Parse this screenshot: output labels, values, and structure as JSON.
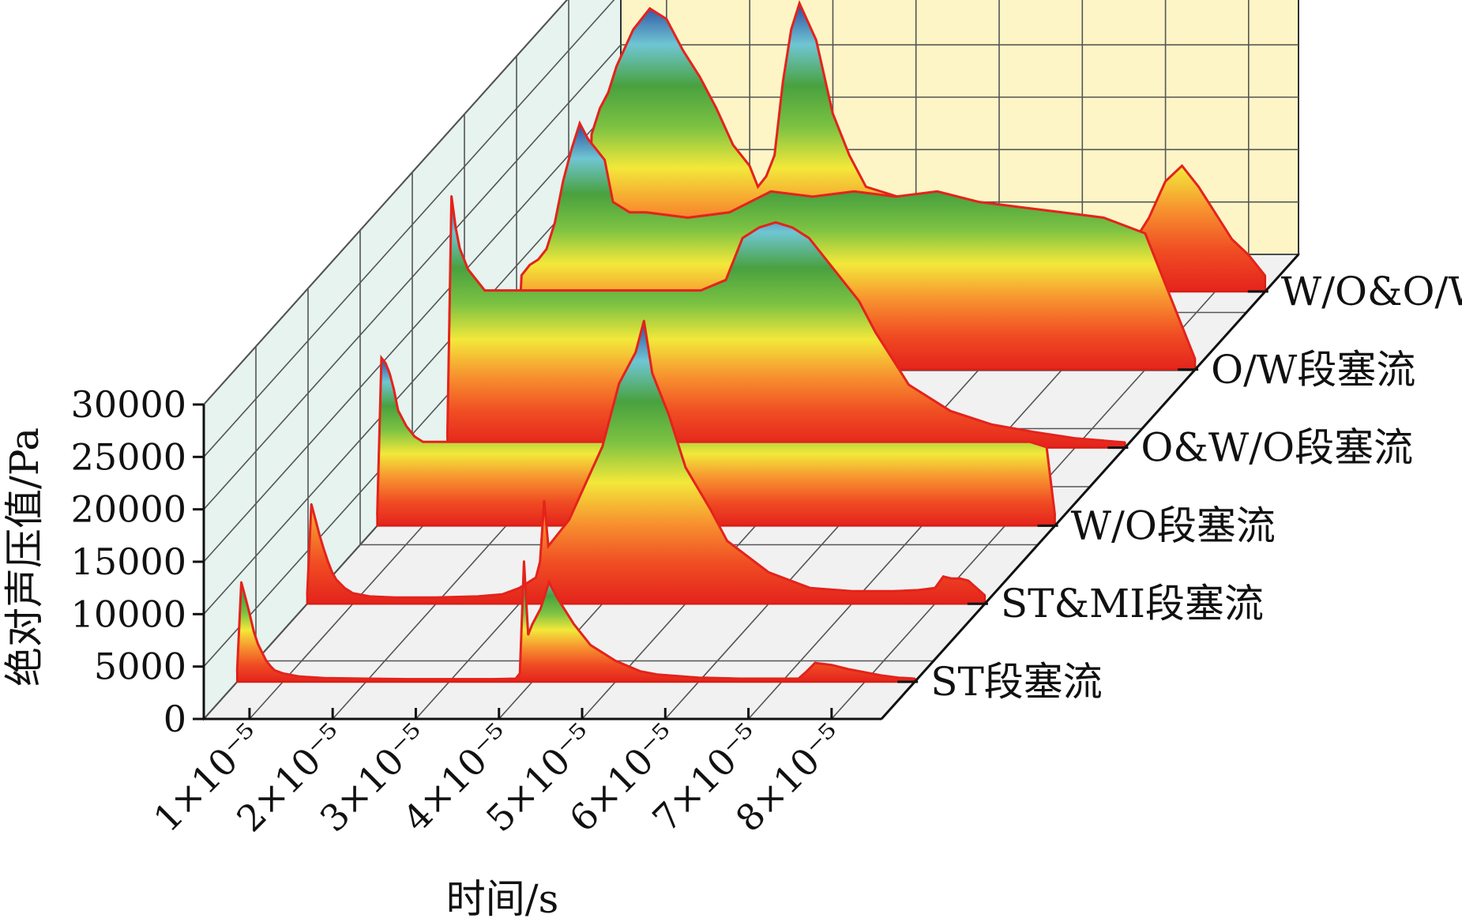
{
  "chart_data": {
    "type": "area",
    "title": "",
    "xlabel": "时间/s",
    "ylabel": "绝对声压值/Pa",
    "x_ticks": [
      "1×10⁻⁵",
      "2×10⁻⁵",
      "3×10⁻⁵",
      "4×10⁻⁵",
      "5×10⁻⁵",
      "6×10⁻⁵",
      "7×10⁻⁵",
      "8×10⁻⁵"
    ],
    "x_tick_values": [
      1e-05,
      2e-05,
      3e-05,
      4e-05,
      5e-05,
      6e-05,
      7e-05,
      8e-05
    ],
    "xlim": [
      4.5e-06,
      8.6e-05
    ],
    "y_ticks": [
      "0",
      "5000",
      "10000",
      "15000",
      "20000",
      "25000",
      "30000"
    ],
    "ylim": [
      0,
      30000
    ],
    "grid": true,
    "colormap": [
      "#e4231c",
      "#f04d23",
      "#f7932f",
      "#f3e83a",
      "#7cc242",
      "#49a13f",
      "#6fc6d3",
      "#2c4aa0"
    ],
    "wall_colors": {
      "left": "#e6f3ee",
      "back": "#fdf5c6",
      "floor": "#f1f1f1"
    },
    "series": [
      {
        "name": "ST段塞流",
        "x": [
          4.5e-06,
          5e-06,
          5.5e-06,
          6e-06,
          6.5e-06,
          7e-06,
          7.5e-06,
          8e-06,
          8.5e-06,
          9e-06,
          1e-05,
          1.2e-05,
          1.5e-05,
          2e-05,
          2.5e-05,
          3e-05,
          3.5e-05,
          3.8e-05,
          3.85e-05,
          3.9e-05,
          3.95e-05,
          4e-05,
          4.1e-05,
          4.2e-05,
          4.3e-05,
          4.5e-05,
          4.7e-05,
          5e-05,
          5.3e-05,
          5.5e-05,
          6e-05,
          6.5e-05,
          7e-05,
          7.2e-05,
          7.3e-05,
          7.4e-05,
          7.6e-05,
          7.8e-05,
          8e-05,
          8.2e-05,
          8.4e-05,
          8.6e-05
        ],
        "y": [
          1000,
          9500,
          8000,
          6500,
          4800,
          3600,
          2800,
          2000,
          1500,
          1100,
          800,
          500,
          350,
          300,
          250,
          250,
          250,
          300,
          800,
          11500,
          4500,
          5500,
          7000,
          9500,
          8000,
          5500,
          3500,
          2000,
          1000,
          700,
          400,
          300,
          300,
          300,
          1000,
          1800,
          1600,
          1200,
          900,
          600,
          400,
          300
        ]
      },
      {
        "name": "ST&MI段塞流",
        "x": [
          4.5e-06,
          5e-06,
          5.5e-06,
          6e-06,
          6.5e-06,
          7e-06,
          7.5e-06,
          8e-06,
          9e-06,
          1e-05,
          1.2e-05,
          1.5e-05,
          2e-05,
          2.5e-05,
          2.8e-05,
          3e-05,
          3.2e-05,
          3.25e-05,
          3.3e-05,
          3.35e-05,
          3.4e-05,
          3.6e-05,
          3.8e-05,
          4e-05,
          4.2e-05,
          4.4e-05,
          4.5e-05,
          4.6e-05,
          4.8e-05,
          5e-05,
          5.3e-05,
          5.5e-05,
          6e-05,
          6.5e-05,
          7e-05,
          7.5e-05,
          7.8e-05,
          8e-05,
          8.1e-05,
          8.2e-05,
          8.3e-05,
          8.4e-05,
          8.6e-05
        ],
        "y": [
          800,
          9500,
          8000,
          6500,
          5200,
          4000,
          3000,
          2300,
          1500,
          1000,
          700,
          600,
          600,
          700,
          900,
          1500,
          2500,
          4000,
          9800,
          5500,
          6000,
          8000,
          11500,
          15000,
          21000,
          24000,
          27000,
          22000,
          18000,
          13000,
          9000,
          6000,
          3000,
          1500,
          1200,
          1200,
          1300,
          1500,
          2600,
          2400,
          2400,
          2200,
          800
        ]
      },
      {
        "name": "W/O段塞流",
        "x": [
          4.5e-06,
          5e-06,
          5.5e-06,
          6e-06,
          6.5e-06,
          7e-06,
          8e-06,
          9e-06,
          1e-05,
          1.5e-05,
          2e-05,
          2.5e-05,
          3e-05,
          3.5e-05,
          4e-05,
          4.5e-05,
          5e-05,
          5.5e-05,
          6e-05,
          6.5e-05,
          7e-05,
          7.5e-05,
          8e-05,
          8.3e-05,
          8.5e-05,
          8.6e-05
        ],
        "y": [
          1000,
          16000,
          15500,
          14500,
          13000,
          11000,
          9500,
          8500,
          8000,
          8000,
          8000,
          8000,
          8000,
          8000,
          8000,
          8000,
          8000,
          8000,
          8000,
          8000,
          8000,
          8000,
          8000,
          8000,
          7500,
          1000
        ]
      },
      {
        "name": "O&W/O段塞流",
        "x": [
          4.5e-06,
          5e-06,
          5.5e-06,
          6e-06,
          7e-06,
          8e-06,
          9e-06,
          1e-05,
          1.5e-05,
          2e-05,
          2.5e-05,
          3e-05,
          3.5e-05,
          3.8e-05,
          4e-05,
          4.2e-05,
          4.4e-05,
          4.6e-05,
          4.8e-05,
          5e-05,
          5.2e-05,
          5.4e-05,
          5.6e-05,
          5.8e-05,
          6e-05,
          6.5e-05,
          7e-05,
          7.5e-05,
          8e-05,
          8.6e-05
        ],
        "y": [
          1000,
          24000,
          21000,
          19000,
          17000,
          16000,
          15000,
          15000,
          15000,
          15000,
          15000,
          15000,
          15000,
          16000,
          20000,
          21000,
          21500,
          21000,
          20000,
          18000,
          16000,
          14000,
          11000,
          8500,
          6000,
          3500,
          2200,
          1500,
          900,
          500
        ]
      },
      {
        "name": "O/W段塞流",
        "x": [
          4.5e-06,
          5e-06,
          6e-06,
          7e-06,
          8e-06,
          9e-06,
          1e-05,
          1.1e-05,
          1.2e-05,
          1.3e-05,
          1.4e-05,
          1.5e-05,
          1.6e-05,
          1.8e-05,
          2e-05,
          2.5e-05,
          3e-05,
          3.5e-05,
          4e-05,
          4.5e-05,
          5e-05,
          5.5e-05,
          6e-05,
          6.5e-05,
          7e-05,
          7.5e-05,
          8e-05,
          8.6e-05
        ],
        "y": [
          1000,
          9000,
          10000,
          10500,
          11500,
          14000,
          18000,
          21000,
          23500,
          22000,
          21000,
          20000,
          16000,
          15000,
          15000,
          14500,
          15000,
          17000,
          16500,
          17000,
          16500,
          17000,
          16000,
          15500,
          15000,
          14500,
          13000,
          1000
        ]
      },
      {
        "name": "W/O&O/W段塞流",
        "x": [
          4.5e-06,
          5e-06,
          6e-06,
          7e-06,
          8e-06,
          1e-05,
          1.2e-05,
          1.4e-05,
          1.6e-05,
          1.8e-05,
          2e-05,
          2.2e-05,
          2.4e-05,
          2.5e-05,
          2.6e-05,
          2.7e-05,
          2.8e-05,
          2.9e-05,
          3e-05,
          3.2e-05,
          3.4e-05,
          3.6e-05,
          3.8e-05,
          4e-05,
          4.2e-05,
          4.4e-05,
          4.6e-05,
          4.8e-05,
          5e-05,
          5.2e-05,
          5.4e-05,
          5.6e-05,
          5.8e-05,
          6e-05,
          6.2e-05,
          6.4e-05,
          6.6e-05,
          6.8e-05,
          7e-05,
          7.2e-05,
          7.4e-05,
          7.6e-05,
          7.8e-05,
          8e-05,
          8.2e-05,
          8.4e-05,
          8.6e-05
        ],
        "y": [
          1000,
          15000,
          17500,
          19000,
          21500,
          25000,
          27000,
          26000,
          23000,
          20500,
          17500,
          14000,
          12000,
          10000,
          11000,
          13000,
          20000,
          25000,
          27500,
          24000,
          17000,
          13000,
          10000,
          9500,
          9000,
          8500,
          8000,
          7500,
          7000,
          6500,
          6000,
          5500,
          5000,
          4500,
          4200,
          4000,
          3800,
          3600,
          4500,
          7000,
          10500,
          12000,
          10000,
          7500,
          5000,
          3500,
          1500
        ]
      }
    ]
  }
}
